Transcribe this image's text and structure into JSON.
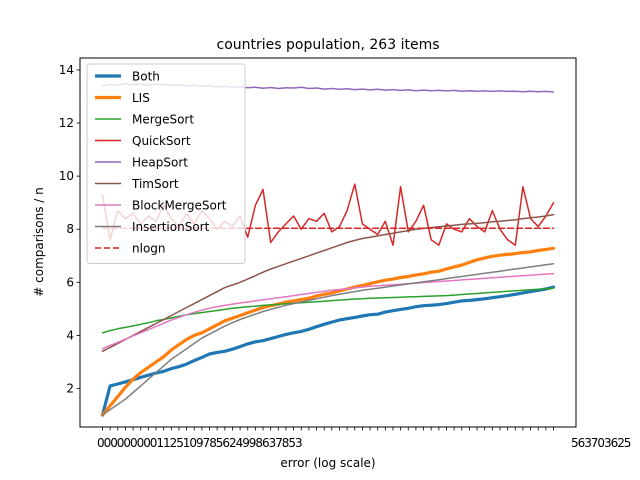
{
  "chart_data": {
    "type": "line",
    "title": "countries population, 263 items",
    "xlabel": "error (log scale)",
    "ylabel": "# comparisons / n",
    "ylim": [
      0.55,
      14.45
    ],
    "yticks": [
      2,
      4,
      6,
      8,
      10,
      12,
      14
    ],
    "xtick_labels_first": [
      "0",
      "0",
      "0",
      "0",
      "0",
      "0",
      "0",
      "0",
      "0",
      "1",
      "1",
      "2",
      "5",
      "1",
      "0",
      "9",
      "7",
      "8",
      "5",
      "6",
      "2",
      "4",
      "9",
      "9",
      "8",
      "6",
      "3",
      "7",
      "8",
      "5",
      "3"
    ],
    "xtick_labels_last": [
      "5",
      "6",
      "3",
      "7",
      "0",
      "3",
      "6",
      "2",
      "5"
    ],
    "grid": false,
    "legend_position": "top-left",
    "x_count": 60,
    "series": [
      {
        "name": "Both",
        "color": "#1f77b4",
        "width": 3.2,
        "dash": "",
        "values": [
          1.0,
          2.1,
          2.17,
          2.25,
          2.33,
          2.42,
          2.5,
          2.58,
          2.65,
          2.75,
          2.82,
          2.92,
          3.05,
          3.17,
          3.3,
          3.36,
          3.4,
          3.48,
          3.58,
          3.68,
          3.76,
          3.8,
          3.88,
          3.96,
          4.04,
          4.1,
          4.15,
          4.23,
          4.33,
          4.42,
          4.5,
          4.58,
          4.63,
          4.68,
          4.73,
          4.78,
          4.8,
          4.88,
          4.93,
          4.98,
          5.02,
          5.08,
          5.12,
          5.14,
          5.16,
          5.2,
          5.25,
          5.3,
          5.32,
          5.35,
          5.38,
          5.42,
          5.46,
          5.5,
          5.55,
          5.6,
          5.65,
          5.7,
          5.75,
          5.82
        ]
      },
      {
        "name": "LIS",
        "color": "#ff7f0e",
        "width": 3.2,
        "dash": "",
        "values": [
          1.0,
          1.35,
          1.7,
          2.05,
          2.35,
          2.6,
          2.8,
          3.0,
          3.2,
          3.45,
          3.65,
          3.85,
          4.0,
          4.1,
          4.25,
          4.4,
          4.55,
          4.65,
          4.75,
          4.85,
          4.95,
          5.05,
          5.12,
          5.18,
          5.25,
          5.3,
          5.35,
          5.4,
          5.48,
          5.55,
          5.6,
          5.68,
          5.75,
          5.82,
          5.88,
          5.95,
          6.02,
          6.08,
          6.12,
          6.18,
          6.22,
          6.28,
          6.32,
          6.38,
          6.42,
          6.5,
          6.58,
          6.65,
          6.75,
          6.85,
          6.92,
          6.98,
          7.02,
          7.05,
          7.08,
          7.12,
          7.15,
          7.2,
          7.24,
          7.28
        ]
      },
      {
        "name": "MergeSort",
        "color": "#2ca02c",
        "width": 1.5,
        "dash": "",
        "values": [
          4.1,
          4.18,
          4.25,
          4.3,
          4.36,
          4.42,
          4.48,
          4.55,
          4.6,
          4.66,
          4.72,
          4.78,
          4.82,
          4.86,
          4.9,
          4.94,
          4.98,
          5.02,
          5.05,
          5.08,
          5.1,
          5.13,
          5.15,
          5.17,
          5.19,
          5.21,
          5.23,
          5.25,
          5.27,
          5.29,
          5.31,
          5.33,
          5.35,
          5.37,
          5.38,
          5.4,
          5.41,
          5.42,
          5.43,
          5.44,
          5.45,
          5.46,
          5.47,
          5.48,
          5.49,
          5.5,
          5.52,
          5.54,
          5.56,
          5.58,
          5.6,
          5.62,
          5.64,
          5.66,
          5.68,
          5.7,
          5.72,
          5.74,
          5.76,
          5.78
        ]
      },
      {
        "name": "QuickSort",
        "color": "#d62728",
        "width": 1.5,
        "dash": "",
        "values": [
          9.3,
          7.6,
          8.7,
          8.4,
          8.6,
          8.2,
          8.5,
          8.3,
          8.9,
          8.4,
          8.1,
          8.6,
          8.2,
          8.7,
          8.4,
          8.0,
          8.3,
          8.1,
          8.5,
          7.7,
          8.9,
          9.5,
          7.5,
          7.9,
          8.2,
          8.5,
          8.0,
          8.4,
          8.3,
          8.6,
          7.9,
          8.1,
          8.7,
          9.7,
          8.2,
          8.0,
          7.8,
          8.3,
          7.4,
          9.6,
          7.9,
          8.3,
          8.9,
          7.6,
          7.4,
          8.2,
          8.0,
          7.9,
          8.4,
          8.1,
          7.9,
          8.7,
          8.0,
          7.6,
          7.4,
          9.6,
          8.4,
          8.1,
          8.5,
          9.0
        ]
      },
      {
        "name": "HeapSort",
        "color": "#9467bd",
        "width": 1.5,
        "dash": "",
        "values": [
          13.4,
          13.45,
          13.42,
          13.48,
          13.44,
          13.46,
          13.43,
          13.47,
          13.45,
          13.42,
          13.44,
          13.4,
          13.42,
          13.38,
          13.4,
          13.36,
          13.38,
          13.35,
          13.37,
          13.33,
          13.35,
          13.31,
          13.34,
          13.3,
          13.33,
          13.32,
          13.35,
          13.3,
          13.32,
          13.28,
          13.3,
          13.27,
          13.29,
          13.26,
          13.28,
          13.25,
          13.27,
          13.24,
          13.26,
          13.23,
          13.25,
          13.22,
          13.24,
          13.22,
          13.23,
          13.21,
          13.23,
          13.2,
          13.22,
          13.2,
          13.21,
          13.19,
          13.21,
          13.19,
          13.2,
          13.18,
          13.2,
          13.18,
          13.19,
          13.17
        ]
      },
      {
        "name": "TimSort",
        "color": "#8c564b",
        "width": 1.5,
        "dash": "",
        "values": [
          3.4,
          3.55,
          3.7,
          3.85,
          4.0,
          4.15,
          4.3,
          4.45,
          4.6,
          4.75,
          4.9,
          5.05,
          5.2,
          5.35,
          5.5,
          5.65,
          5.8,
          5.9,
          6.0,
          6.12,
          6.25,
          6.38,
          6.5,
          6.6,
          6.7,
          6.8,
          6.9,
          7.0,
          7.1,
          7.2,
          7.3,
          7.4,
          7.5,
          7.58,
          7.65,
          7.7,
          7.75,
          7.8,
          7.85,
          7.9,
          7.95,
          8.0,
          8.03,
          8.06,
          8.09,
          8.12,
          8.15,
          8.18,
          8.2,
          8.22,
          8.25,
          8.28,
          8.3,
          8.33,
          8.36,
          8.4,
          8.43,
          8.46,
          8.5,
          8.55
        ]
      },
      {
        "name": "BlockMergeSort",
        "color": "#e377c2",
        "width": 1.5,
        "dash": "",
        "values": [
          3.5,
          3.62,
          3.74,
          3.86,
          3.98,
          4.1,
          4.22,
          4.34,
          4.46,
          4.58,
          4.68,
          4.78,
          4.87,
          4.95,
          5.02,
          5.08,
          5.13,
          5.18,
          5.22,
          5.26,
          5.3,
          5.34,
          5.38,
          5.42,
          5.46,
          5.5,
          5.54,
          5.58,
          5.62,
          5.66,
          5.7,
          5.73,
          5.76,
          5.79,
          5.82,
          5.85,
          5.87,
          5.89,
          5.91,
          5.93,
          5.95,
          5.97,
          5.99,
          6.01,
          6.03,
          6.05,
          6.07,
          6.09,
          6.11,
          6.13,
          6.15,
          6.17,
          6.19,
          6.21,
          6.23,
          6.25,
          6.27,
          6.29,
          6.31,
          6.33
        ]
      },
      {
        "name": "InsertionSort",
        "color": "#7f7f7f",
        "width": 1.5,
        "dash": "",
        "values": [
          1.0,
          1.2,
          1.4,
          1.6,
          1.85,
          2.1,
          2.35,
          2.6,
          2.85,
          3.1,
          3.3,
          3.5,
          3.7,
          3.9,
          4.05,
          4.2,
          4.35,
          4.48,
          4.6,
          4.7,
          4.8,
          4.9,
          4.98,
          5.06,
          5.14,
          5.2,
          5.26,
          5.32,
          5.38,
          5.44,
          5.5,
          5.55,
          5.6,
          5.65,
          5.7,
          5.74,
          5.78,
          5.82,
          5.86,
          5.9,
          5.94,
          5.98,
          6.02,
          6.06,
          6.1,
          6.14,
          6.18,
          6.22,
          6.26,
          6.3,
          6.34,
          6.38,
          6.42,
          6.46,
          6.5,
          6.54,
          6.58,
          6.62,
          6.66,
          6.7
        ]
      },
      {
        "name": "nlogn",
        "color": "#d62728",
        "width": 1.5,
        "dash": "6,3",
        "values": [
          8.04,
          8.04,
          8.04,
          8.04,
          8.04,
          8.04,
          8.04,
          8.04,
          8.04,
          8.04,
          8.04,
          8.04,
          8.04,
          8.04,
          8.04,
          8.04,
          8.04,
          8.04,
          8.04,
          8.04,
          8.04,
          8.04,
          8.04,
          8.04,
          8.04,
          8.04,
          8.04,
          8.04,
          8.04,
          8.04,
          8.04,
          8.04,
          8.04,
          8.04,
          8.04,
          8.04,
          8.04,
          8.04,
          8.04,
          8.04,
          8.04,
          8.04,
          8.04,
          8.04,
          8.04,
          8.04,
          8.04,
          8.04,
          8.04,
          8.04,
          8.04,
          8.04,
          8.04,
          8.04,
          8.04,
          8.04,
          8.04,
          8.04,
          8.04,
          8.04
        ]
      }
    ]
  }
}
